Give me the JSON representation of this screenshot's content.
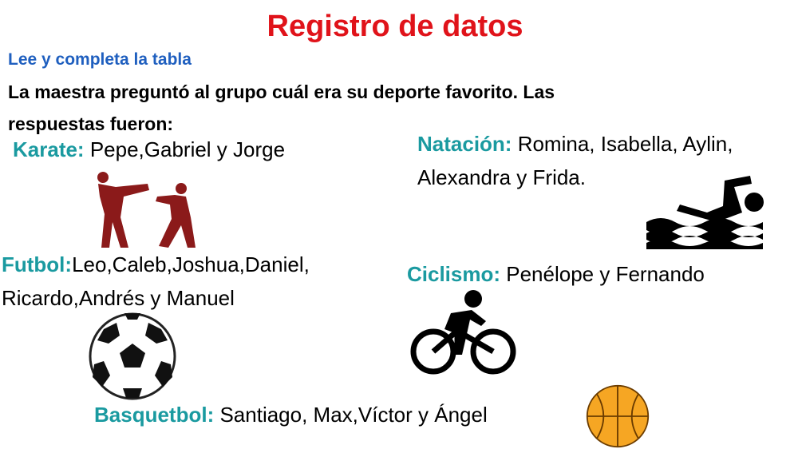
{
  "title": "Registro de datos",
  "instruction": "Lee y completa la tabla",
  "prompt_line1": "La maestra preguntó al grupo cuál era su deporte favorito. Las",
  "prompt_line2": "respuestas fueron:",
  "sports": {
    "karate": {
      "label": "Karate:",
      "names": " Pepe,Gabriel y Jorge",
      "icon": "karate-icon"
    },
    "natacion": {
      "label": "Natación:",
      "names_line1": " Romina, Isabella, Aylin,",
      "names_line2": "Alexandra y Frida.",
      "icon": "swimmer-icon"
    },
    "futbol": {
      "label": "Futbol:",
      "names_line1": "Leo,Caleb,Joshua,Daniel,",
      "names_line2": "Ricardo,Andrés y Manuel",
      "icon": "soccer-ball-icon"
    },
    "ciclismo": {
      "label": "Ciclismo:",
      "names": " Penélope y Fernando",
      "icon": "cyclist-icon"
    },
    "basquetbol": {
      "label": "Basquetbol:",
      "names": " Santiago, Max,Víctor y Ángel",
      "icon": "basketball-icon"
    }
  },
  "colors": {
    "title": "#e0131a",
    "instruction": "#1f5fbf",
    "sport_label": "#1a9aa0"
  }
}
